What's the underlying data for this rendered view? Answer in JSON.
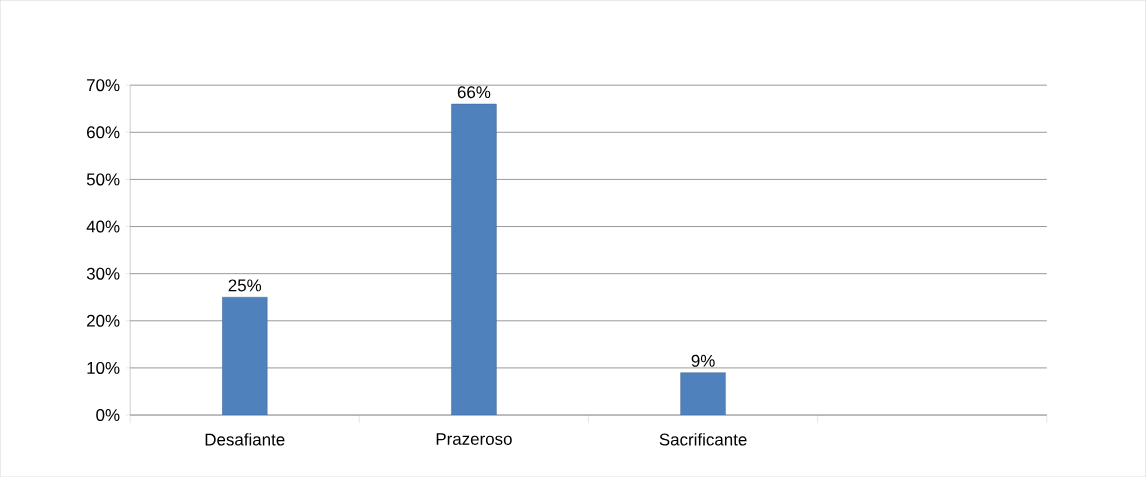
{
  "chart_data": {
    "type": "bar",
    "categories": [
      "Desafiante",
      "Prazeroso",
      "Sacrificante",
      null
    ],
    "values": [
      25,
      66,
      9,
      null
    ],
    "color": "#4f81bd",
    "value_labels": [
      "25%",
      "66%",
      "9%",
      null
    ],
    "ylim": [
      0,
      70
    ],
    "yticks": [
      {
        "value": 0,
        "label": "0%"
      },
      {
        "value": 10,
        "label": "10%"
      },
      {
        "value": 20,
        "label": "20%"
      },
      {
        "value": 30,
        "label": "30%"
      },
      {
        "value": 40,
        "label": "40%"
      },
      {
        "value": 50,
        "label": "50%"
      },
      {
        "value": 60,
        "label": "60%"
      },
      {
        "value": 70,
        "label": "70%"
      }
    ],
    "grid": "y"
  }
}
